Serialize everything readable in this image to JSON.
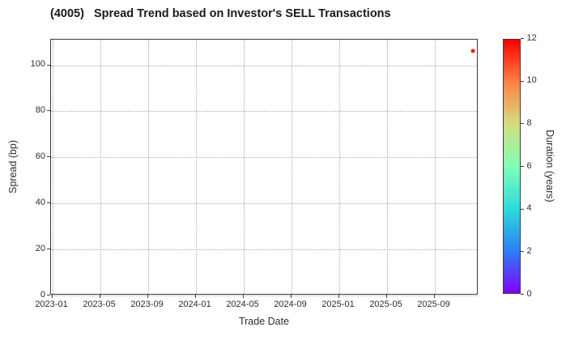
{
  "chart_data": {
    "type": "scatter",
    "title": "(4005)   Spread Trend based on Investor's SELL Transactions",
    "xlabel": "Trade Date",
    "ylabel": "Spread (bp)",
    "x_tick_labels": [
      "2023-01",
      "2023-05",
      "2023-09",
      "2024-01",
      "2024-05",
      "2024-09",
      "2025-01",
      "2025-05",
      "2025-09"
    ],
    "y_ticks": [
      0,
      20,
      40,
      60,
      80,
      100
    ],
    "ylim": [
      0,
      111
    ],
    "xlim": [
      "2022-12-27",
      "2025-12-22"
    ],
    "grid": true,
    "grid_style": "dotted",
    "legend": "none",
    "points": [
      {
        "trade_date": "2025-12-10",
        "spread_bp": 106,
        "duration_years": 11.8,
        "color": "#fa1c0e"
      }
    ],
    "colorbar": {
      "label": "Duration (years)",
      "ticks": [
        0,
        2,
        4,
        6,
        8,
        10,
        12
      ],
      "min": 0,
      "max": 12,
      "colormap": "rainbow",
      "stops": [
        {
          "value": 0,
          "color": "#8000ff"
        },
        {
          "value": 2,
          "color": "#2a80f6"
        },
        {
          "value": 4,
          "color": "#2bdcdc"
        },
        {
          "value": 6,
          "color": "#80ffb5"
        },
        {
          "value": 8,
          "color": "#d5dd80"
        },
        {
          "value": 10,
          "color": "#ff8042"
        },
        {
          "value": 12,
          "color": "#ff0000"
        }
      ]
    },
    "colors": {
      "background": "#ffffff",
      "frame": "#3c3c3c",
      "grid": "#a9a9a9",
      "text": "#2e2e2e",
      "title_text": "#1a1a1a"
    }
  }
}
